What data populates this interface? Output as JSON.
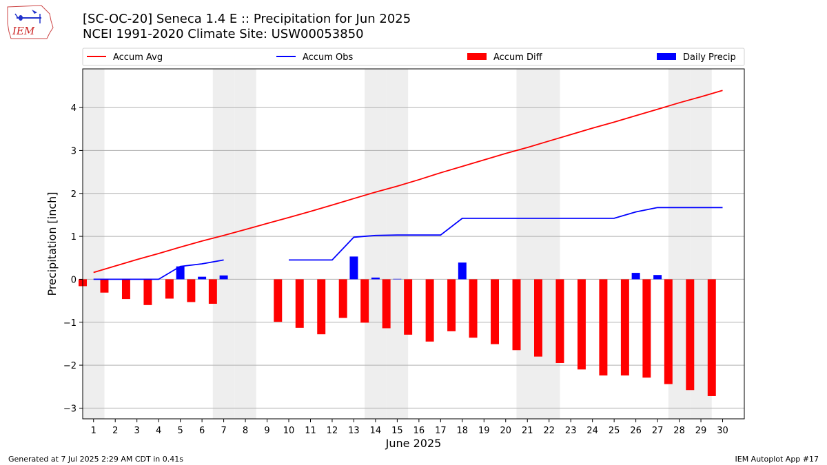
{
  "header": {
    "title_line1": "[SC-OC-20] Seneca 1.4 E :: Precipitation for Jun 2025",
    "title_line2": "NCEI 1991-2020 Climate Site: USW00053850",
    "logo_text": "IEM"
  },
  "footer": {
    "generated": "Generated at 7 Jul 2025 2:29 AM CDT in 0.41s",
    "app": "IEM Autoplot App #17"
  },
  "colors": {
    "accum_avg": "#ff0000",
    "accum_obs": "#0000ff",
    "accum_diff": "#ff0000",
    "daily_precip": "#0000ff",
    "weekend_shade": "#eeeeee",
    "grid": "#b0b0b0"
  },
  "chart_data": {
    "type": "bar",
    "xlabel": "June 2025",
    "ylabel": "Precipitation [inch]",
    "xlim": [
      0.5,
      31
    ],
    "ylim": [
      -3.25,
      4.9
    ],
    "yticks": [
      -3,
      -2,
      -1,
      0,
      1,
      2,
      3,
      4
    ],
    "ytick_labels": [
      "−3",
      "−2",
      "−1",
      "0",
      "1",
      "2",
      "3",
      "4"
    ],
    "days": [
      1,
      2,
      3,
      4,
      5,
      6,
      7,
      8,
      9,
      10,
      11,
      12,
      13,
      14,
      15,
      16,
      17,
      18,
      19,
      20,
      21,
      22,
      23,
      24,
      25,
      26,
      27,
      28,
      29,
      30
    ],
    "weekend_days": [
      1,
      7,
      8,
      14,
      15,
      21,
      22,
      28,
      29
    ],
    "grid": "horizontal",
    "legend_placement": "top",
    "legend": [
      "Accum Avg",
      "Accum Obs",
      "Accum Diff",
      "Daily Precip"
    ],
    "series": [
      {
        "name": "Accum Avg",
        "kind": "line",
        "color": "#ff0000",
        "values": [
          0.16,
          0.31,
          0.46,
          0.6,
          0.75,
          0.89,
          1.02,
          1.16,
          1.3,
          1.44,
          1.58,
          1.73,
          1.88,
          2.03,
          2.17,
          2.32,
          2.48,
          2.63,
          2.78,
          2.93,
          3.07,
          3.22,
          3.37,
          3.52,
          3.66,
          3.81,
          3.96,
          4.11,
          4.25,
          4.4
        ]
      },
      {
        "name": "Accum Obs",
        "kind": "line",
        "color": "#0000ff",
        "values": [
          0.0,
          0.0,
          0.0,
          0.0,
          0.3,
          0.36,
          0.45,
          null,
          null,
          0.45,
          0.45,
          0.45,
          0.98,
          1.02,
          1.03,
          1.03,
          1.03,
          1.42,
          1.42,
          1.42,
          1.42,
          1.42,
          1.42,
          1.42,
          1.42,
          1.57,
          1.67,
          1.67,
          1.67,
          1.67
        ]
      },
      {
        "name": "Accum Diff",
        "kind": "bar",
        "color": "#ff0000",
        "values": [
          -0.16,
          -0.31,
          -0.46,
          -0.6,
          -0.45,
          -0.53,
          -0.57,
          null,
          null,
          -0.99,
          -1.13,
          -1.28,
          -0.9,
          -1.01,
          -1.14,
          -1.29,
          -1.45,
          -1.21,
          -1.36,
          -1.51,
          -1.65,
          -1.8,
          -1.95,
          -2.1,
          -2.24,
          -2.24,
          -2.29,
          -2.44,
          -2.58,
          -2.72
        ]
      },
      {
        "name": "Daily Precip",
        "kind": "bar",
        "color": "#0000ff",
        "values": [
          0,
          0,
          0,
          0,
          0.3,
          0.06,
          0.09,
          null,
          null,
          0,
          0,
          0,
          0.53,
          0.04,
          0.01,
          0,
          0,
          0.39,
          0,
          0,
          0,
          0,
          0,
          0,
          0,
          0.15,
          0.1,
          0,
          0,
          0
        ]
      }
    ]
  }
}
